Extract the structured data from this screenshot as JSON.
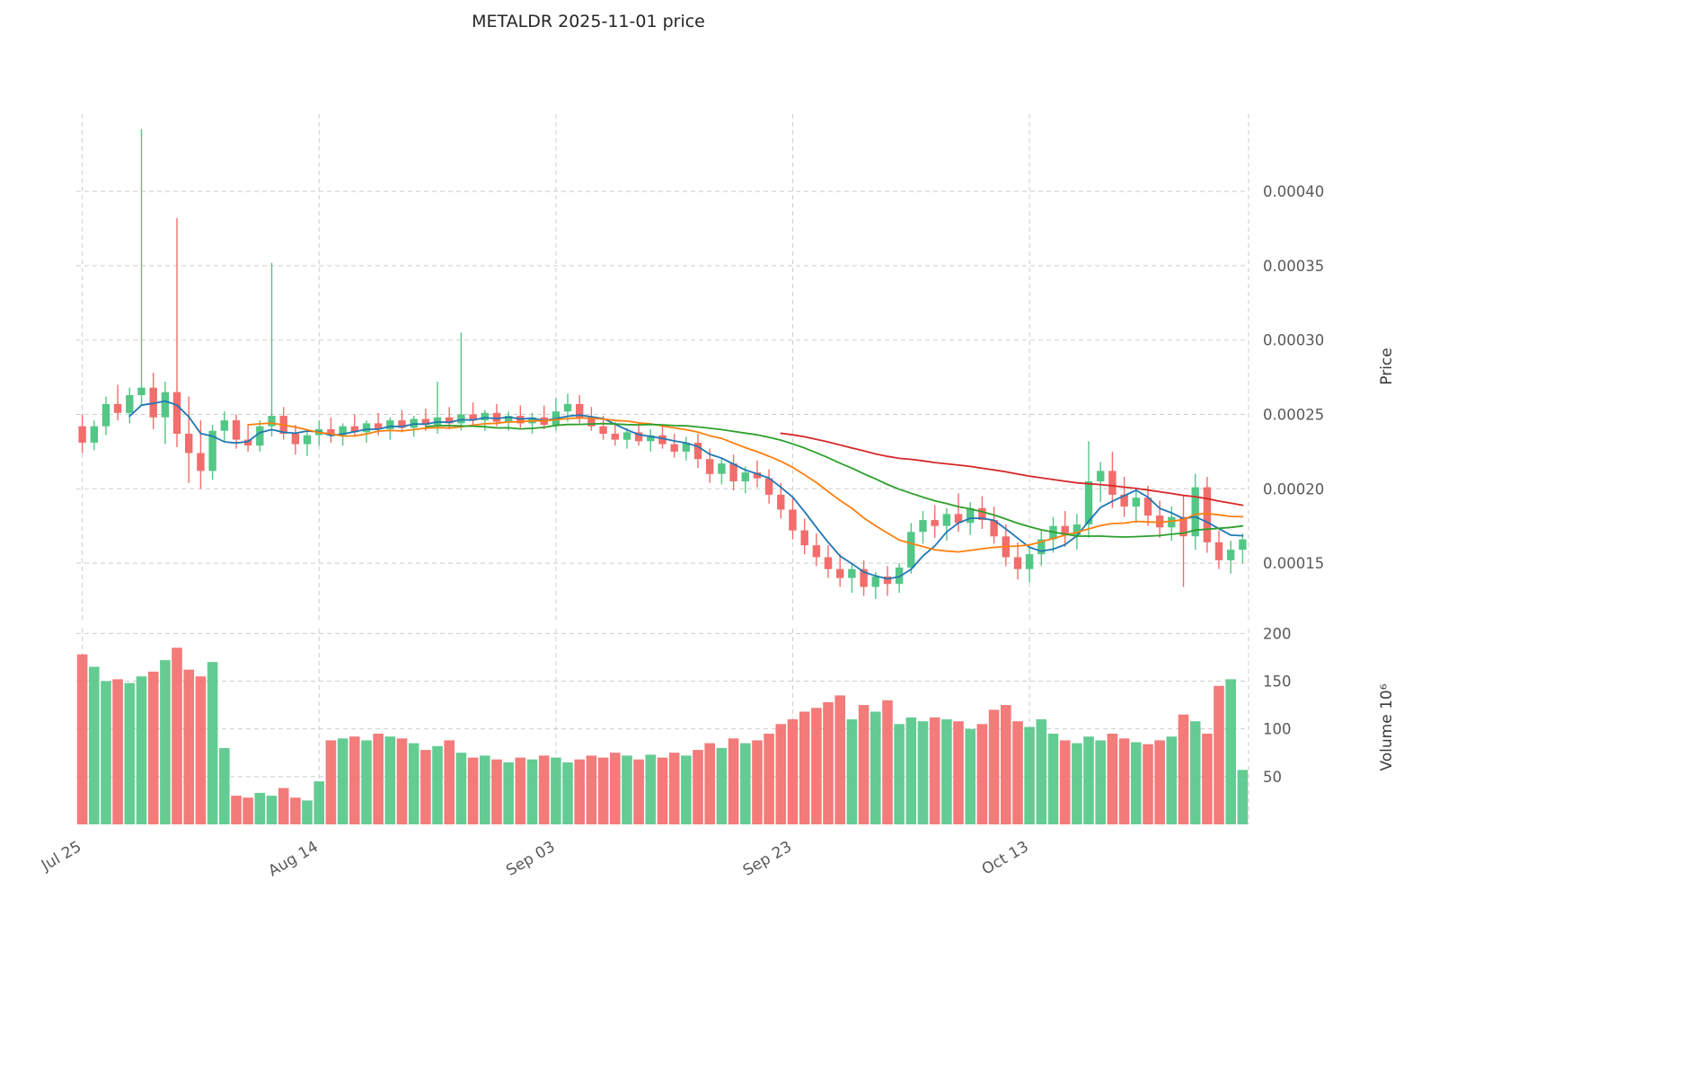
{
  "title": "METALDR  2025-11-01  price",
  "colors": {
    "up": "#53c786",
    "down": "#f26d6b",
    "grid": "#c2c2c2",
    "tick_text": "#595959",
    "title_text": "#262626",
    "ma_blue": "#1f77b4",
    "ma_orange": "#ff7f0e",
    "ma_green": "#2ca02c",
    "ma_red": "#d62728"
  },
  "chart_data": {
    "type": "candlestick",
    "symbol": "METALDR",
    "as_of_date": "2025-11-01",
    "frequency": "daily",
    "price_unit": 1e-06,
    "volume_unit": 1000000,
    "candles_format": [
      "open",
      "high",
      "low",
      "close",
      "volume"
    ],
    "candles": [
      [
        242,
        250,
        224,
        231,
        178
      ],
      [
        231,
        246,
        226,
        242,
        165
      ],
      [
        242,
        262,
        236,
        257,
        150
      ],
      [
        257,
        270,
        246,
        251,
        152
      ],
      [
        251,
        268,
        244,
        263,
        148
      ],
      [
        263,
        442,
        256,
        268,
        155
      ],
      [
        268,
        278,
        240,
        248,
        160
      ],
      [
        248,
        272,
        230,
        265,
        172
      ],
      [
        265,
        382,
        228,
        237,
        185
      ],
      [
        237,
        262,
        204,
        224,
        162
      ],
      [
        224,
        246,
        200,
        212,
        155
      ],
      [
        212,
        243,
        206,
        239,
        170
      ],
      [
        239,
        252,
        232,
        246,
        80
      ],
      [
        246,
        250,
        227,
        233,
        30
      ],
      [
        233,
        243,
        225,
        229,
        28
      ],
      [
        229,
        246,
        225,
        242,
        33
      ],
      [
        242,
        352,
        235,
        249,
        30
      ],
      [
        249,
        255,
        233,
        237,
        38
      ],
      [
        237,
        243,
        223,
        230,
        28
      ],
      [
        230,
        240,
        222,
        236,
        25
      ],
      [
        236,
        246,
        229,
        240,
        45
      ],
      [
        240,
        248,
        231,
        236,
        88
      ],
      [
        236,
        244,
        229,
        242,
        90
      ],
      [
        242,
        250,
        235,
        238,
        92
      ],
      [
        238,
        246,
        231,
        244,
        88
      ],
      [
        244,
        251,
        236,
        240,
        95
      ],
      [
        240,
        248,
        233,
        246,
        92
      ],
      [
        246,
        253,
        238,
        241,
        90
      ],
      [
        241,
        249,
        235,
        247,
        85
      ],
      [
        247,
        254,
        239,
        243,
        78
      ],
      [
        243,
        272,
        237,
        248,
        82
      ],
      [
        248,
        255,
        240,
        244,
        88
      ],
      [
        244,
        305,
        239,
        250,
        75
      ],
      [
        250,
        258,
        242,
        246,
        70
      ],
      [
        246,
        253,
        239,
        251,
        72
      ],
      [
        251,
        257,
        242,
        245,
        68
      ],
      [
        245,
        252,
        239,
        249,
        65
      ],
      [
        249,
        256,
        241,
        244,
        70
      ],
      [
        244,
        251,
        237,
        248,
        68
      ],
      [
        248,
        256,
        240,
        243,
        72
      ],
      [
        243,
        261,
        239,
        252,
        70
      ],
      [
        252,
        264,
        245,
        257,
        65
      ],
      [
        257,
        263,
        244,
        248,
        68
      ],
      [
        248,
        255,
        239,
        242,
        72
      ],
      [
        242,
        249,
        233,
        237,
        70
      ],
      [
        237,
        245,
        229,
        233,
        75
      ],
      [
        233,
        241,
        227,
        238,
        72
      ],
      [
        238,
        244,
        229,
        232,
        68
      ],
      [
        232,
        240,
        225,
        236,
        73
      ],
      [
        236,
        242,
        227,
        230,
        70
      ],
      [
        230,
        237,
        221,
        225,
        75
      ],
      [
        225,
        235,
        219,
        231,
        72
      ],
      [
        231,
        237,
        214,
        220,
        78
      ],
      [
        220,
        227,
        204,
        210,
        85
      ],
      [
        210,
        221,
        203,
        217,
        80
      ],
      [
        217,
        223,
        199,
        205,
        90
      ],
      [
        205,
        215,
        197,
        211,
        85
      ],
      [
        211,
        219,
        201,
        207,
        88
      ],
      [
        207,
        213,
        190,
        196,
        95
      ],
      [
        196,
        204,
        180,
        186,
        105
      ],
      [
        186,
        194,
        166,
        172,
        110
      ],
      [
        172,
        180,
        156,
        162,
        118
      ],
      [
        162,
        170,
        148,
        154,
        122
      ],
      [
        154,
        162,
        140,
        146,
        128
      ],
      [
        146,
        156,
        134,
        140,
        135
      ],
      [
        140,
        150,
        130,
        146,
        110
      ],
      [
        146,
        152,
        128,
        134,
        125
      ],
      [
        134,
        144,
        126,
        141,
        118
      ],
      [
        141,
        148,
        128,
        136,
        130
      ],
      [
        136,
        150,
        130,
        147,
        105
      ],
      [
        147,
        177,
        143,
        171,
        112
      ],
      [
        171,
        185,
        163,
        179,
        108
      ],
      [
        179,
        189,
        167,
        175,
        112
      ],
      [
        175,
        187,
        165,
        183,
        110
      ],
      [
        183,
        197,
        171,
        177,
        108
      ],
      [
        177,
        191,
        169,
        187,
        100
      ],
      [
        187,
        195,
        173,
        179,
        105
      ],
      [
        179,
        188,
        163,
        168,
        120
      ],
      [
        168,
        176,
        148,
        154,
        125
      ],
      [
        154,
        164,
        139,
        146,
        108
      ],
      [
        146,
        160,
        137,
        156,
        102
      ],
      [
        156,
        172,
        148,
        166,
        110
      ],
      [
        166,
        181,
        157,
        175,
        95
      ],
      [
        175,
        185,
        161,
        169,
        88
      ],
      [
        169,
        183,
        159,
        176,
        85
      ],
      [
        176,
        232,
        167,
        205,
        92
      ],
      [
        205,
        218,
        191,
        212,
        88
      ],
      [
        212,
        225,
        187,
        196,
        95
      ],
      [
        196,
        208,
        181,
        188,
        90
      ],
      [
        188,
        200,
        177,
        194,
        86
      ],
      [
        194,
        202,
        175,
        182,
        84
      ],
      [
        182,
        192,
        167,
        174,
        88
      ],
      [
        174,
        188,
        165,
        181,
        92
      ],
      [
        181,
        196,
        134,
        168,
        115
      ],
      [
        168,
        210,
        159,
        201,
        108
      ],
      [
        201,
        208,
        157,
        164,
        95
      ],
      [
        164,
        172,
        146,
        152,
        145
      ],
      [
        152,
        165,
        143,
        159,
        152
      ],
      [
        159,
        170,
        150,
        166,
        57
      ]
    ],
    "x_ticks": [
      {
        "index": 0,
        "label": "Jul 25"
      },
      {
        "index": 20,
        "label": "Aug 14"
      },
      {
        "index": 40,
        "label": "Sep 03"
      },
      {
        "index": 60,
        "label": "Sep 23"
      },
      {
        "index": 80,
        "label": "Oct 13"
      }
    ],
    "price_axis": {
      "label": "Price",
      "range": [
        112,
        452
      ],
      "ticks": [
        {
          "value": 150,
          "label": "0.00015"
        },
        {
          "value": 200,
          "label": "0.00020"
        },
        {
          "value": 250,
          "label": "0.00025"
        },
        {
          "value": 300,
          "label": "0.00030"
        },
        {
          "value": 350,
          "label": "0.00035"
        },
        {
          "value": 400,
          "label": "0.00040"
        }
      ]
    },
    "volume_axis": {
      "label": "Volume 10⁶",
      "range": [
        0,
        205
      ],
      "ticks": [
        {
          "value": 50,
          "label": "50"
        },
        {
          "value": 100,
          "label": "100"
        },
        {
          "value": 150,
          "label": "150"
        },
        {
          "value": 200,
          "label": "200"
        }
      ]
    },
    "moving_averages": [
      {
        "name": "ma-short",
        "window": 5,
        "color": "#1f77b4"
      },
      {
        "name": "ma-medium",
        "window": 15,
        "color": "#ff7f0e"
      },
      {
        "name": "ma-long",
        "window": 30,
        "color": "#2ca02c"
      },
      {
        "name": "ma-longest",
        "window": 60,
        "color": "#d62728"
      }
    ],
    "legend": "none",
    "grid": "dashed"
  }
}
